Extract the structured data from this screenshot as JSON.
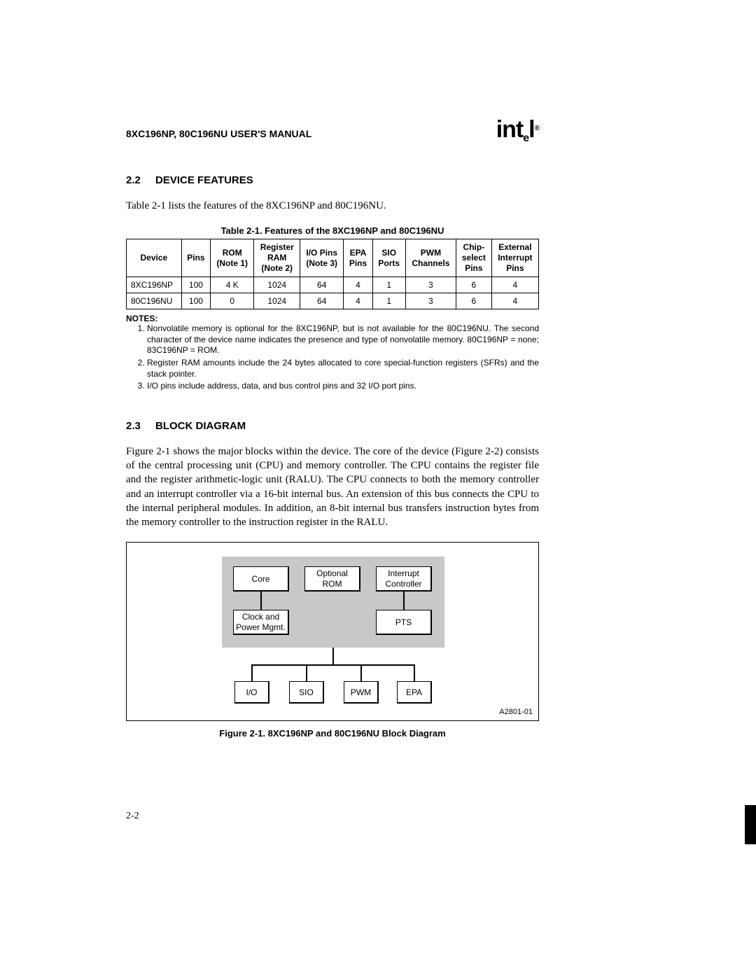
{
  "header": {
    "manual_title": "8XC196NP, 80C196NU USER'S MANUAL",
    "logo_main": "int",
    "logo_sub": "e",
    "logo_tail": "l",
    "logo_reg": "®"
  },
  "section22": {
    "num": "2.2",
    "title": "DEVICE FEATURES",
    "intro": "Table 2-1 lists the features of the 8XC196NP and 80C196NU."
  },
  "table": {
    "caption": "Table 2-1.  Features of the 8XC196NP and 80C196NU",
    "columns": [
      "Device",
      "Pins",
      "ROM\n(Note 1)",
      "Register\nRAM\n(Note 2)",
      "I/O Pins\n(Note 3)",
      "EPA\nPins",
      "SIO\nPorts",
      "PWM\nChannels",
      "Chip-\nselect\nPins",
      "External\nInterrupt\nPins"
    ],
    "rows": [
      [
        "8XC196NP",
        "100",
        "4 K",
        "1024",
        "64",
        "4",
        "1",
        "3",
        "6",
        "4"
      ],
      [
        "80C196NU",
        "100",
        "0",
        "1024",
        "64",
        "4",
        "1",
        "3",
        "6",
        "4"
      ]
    ]
  },
  "notes": {
    "head": "NOTES:",
    "items": [
      "Nonvolatile memory is optional for the 8XC196NP, but is not available for the 80C196NU. The second character of the device name indicates the presence and type of nonvolatile memory. 80C196NP = none; 83C196NP = ROM.",
      "Register RAM amounts include the 24 bytes allocated to core special-function registers (SFRs) and the stack pointer.",
      "I/O pins include address, data, and bus control pins and 32 I/O port pins."
    ]
  },
  "section23": {
    "num": "2.3",
    "title": "BLOCK DIAGRAM",
    "body": "Figure 2-1 shows the major blocks within the device. The core of the device (Figure 2-2) consists of the central processing unit (CPU) and memory controller. The CPU contains the register file and the register arithmetic-logic unit (RALU). The CPU connects to both the memory controller and an interrupt controller via a 16-bit internal bus. An extension of this bus connects the CPU to the internal peripheral modules. In addition, an 8-bit internal bus transfers instruction bytes from the memory controller to the instruction register in the RALU."
  },
  "figure": {
    "nodes": {
      "core": "Core",
      "rom": "Optional\nROM",
      "int": "Interrupt\nController",
      "clk": "Clock and\nPower Mgmt.",
      "pts": "PTS",
      "io": "I/O",
      "sio": "SIO",
      "pwm": "PWM",
      "epa": "EPA"
    },
    "id": "A2801-01",
    "caption": "Figure 2-1.  8XC196NP and 80C196NU Block Diagram"
  },
  "page_num": "2-2"
}
